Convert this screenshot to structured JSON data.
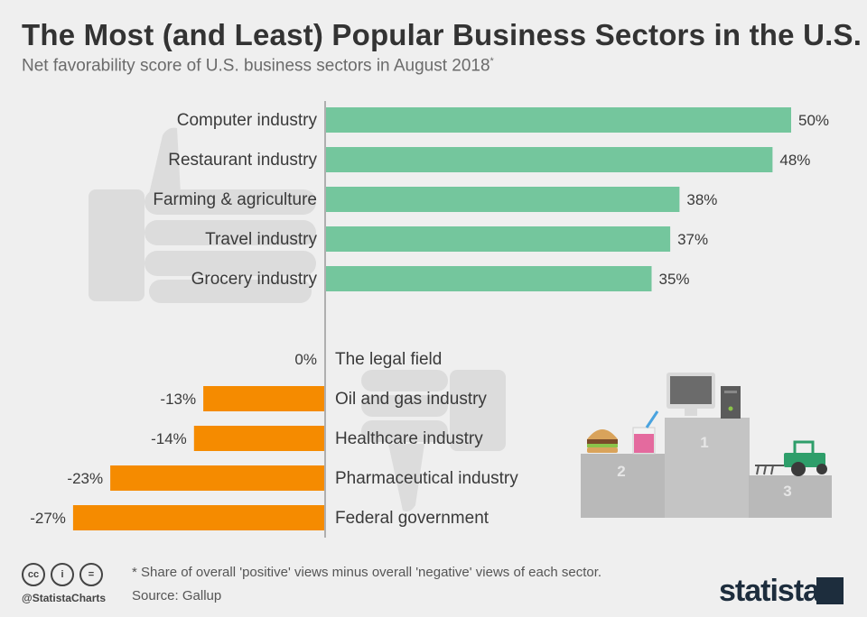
{
  "header": {
    "title": "The Most (and Least) Popular Business Sectors in the U.S.",
    "subtitle": "Net favorability score of U.S. business sectors in August 2018",
    "subtitle_mark": "*"
  },
  "chart_data": {
    "type": "bar",
    "orientation": "horizontal",
    "title": "The Most (and Least) Popular Business Sectors in the U.S.",
    "subtitle": "Net favorability score of U.S. business sectors in August 2018*",
    "unit": "%",
    "groups": [
      {
        "name": "positive",
        "color": "#74c69d",
        "categories": [
          "Computer industry",
          "Restaurant industry",
          "Farming & agriculture",
          "Travel industry",
          "Grocery industry"
        ],
        "values": [
          50,
          48,
          38,
          37,
          35
        ],
        "labels": [
          "50%",
          "48%",
          "38%",
          "37%",
          "35%"
        ]
      },
      {
        "name": "negative",
        "color": "#f58b00",
        "categories": [
          "The legal field",
          "Oil and gas industry",
          "Healthcare industry",
          "Pharmaceutical industry",
          "Federal government"
        ],
        "values": [
          0,
          -13,
          -14,
          -23,
          -27
        ],
        "labels": [
          "0%",
          "-13%",
          "-14%",
          "-23%",
          "-27%"
        ]
      }
    ]
  },
  "illustration": {
    "podium_places": [
      "1",
      "2",
      "3"
    ]
  },
  "footer": {
    "note": "* Share of overall 'positive' views minus overall 'negative' views of each sector.",
    "source": "Source: Gallup",
    "handle": "@StatistaCharts",
    "brand": "statista",
    "license_icons": [
      "cc",
      "i",
      "="
    ]
  },
  "colors": {
    "positive": "#74c69d",
    "negative": "#f58b00",
    "axis": "#9a9a9a"
  }
}
